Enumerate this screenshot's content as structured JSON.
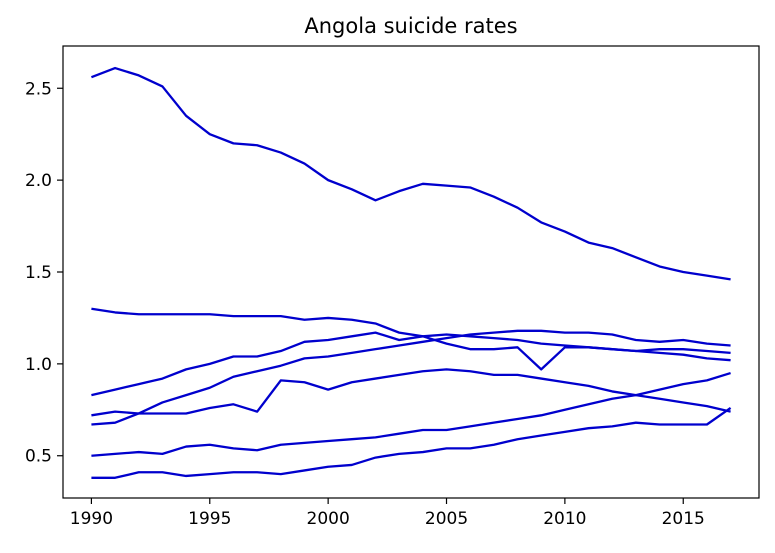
{
  "chart_data": {
    "type": "line",
    "title": "Angola suicide rates",
    "xlabel": "",
    "ylabel": "",
    "xlim": [
      1988.8,
      2018.2
    ],
    "ylim": [
      0.27,
      2.73
    ],
    "x_ticks": [
      "1990",
      "1995",
      "2000",
      "2005",
      "2010",
      "2015"
    ],
    "y_ticks": [
      "0.5",
      "1.0",
      "1.5",
      "2.0",
      "2.5"
    ],
    "grid": false,
    "legend": "none",
    "line_color": "#0000cd",
    "x": [
      1990,
      1991,
      1992,
      1993,
      1994,
      1995,
      1996,
      1997,
      1998,
      1999,
      2000,
      2001,
      2002,
      2003,
      2004,
      2005,
      2006,
      2007,
      2008,
      2009,
      2010,
      2011,
      2012,
      2013,
      2014,
      2015,
      2016,
      2017
    ],
    "series": [
      {
        "values": [
          2.56,
          2.61,
          2.57,
          2.51,
          2.35,
          2.25,
          2.2,
          2.19,
          2.15,
          2.09,
          2.0,
          1.95,
          1.89,
          1.94,
          1.98,
          1.97,
          1.96,
          1.91,
          1.85,
          1.77,
          1.72,
          1.66,
          1.63,
          1.58,
          1.53,
          1.5,
          1.48,
          1.46
        ]
      },
      {
        "values": [
          1.3,
          1.28,
          1.27,
          1.27,
          1.27,
          1.27,
          1.26,
          1.26,
          1.26,
          1.24,
          1.25,
          1.24,
          1.22,
          1.17,
          1.15,
          1.11,
          1.08,
          1.08,
          1.09,
          0.97,
          1.09,
          1.09,
          1.08,
          1.07,
          1.06,
          1.05,
          1.03,
          1.02
        ]
      },
      {
        "values": [
          0.83,
          0.86,
          0.89,
          0.92,
          0.97,
          1.0,
          1.04,
          1.04,
          1.07,
          1.12,
          1.13,
          1.15,
          1.17,
          1.13,
          1.15,
          1.16,
          1.15,
          1.14,
          1.13,
          1.11,
          1.1,
          1.09,
          1.08,
          1.07,
          1.08,
          1.08,
          1.07,
          1.06
        ]
      },
      {
        "values": [
          0.72,
          0.74,
          0.73,
          0.73,
          0.73,
          0.76,
          0.78,
          0.74,
          0.91,
          0.9,
          0.86,
          0.9,
          0.92,
          0.94,
          0.96,
          0.97,
          0.96,
          0.94,
          0.94,
          0.92,
          0.9,
          0.88,
          0.85,
          0.83,
          0.81,
          0.79,
          0.77,
          0.74
        ]
      },
      {
        "values": [
          0.67,
          0.68,
          0.73,
          0.79,
          0.83,
          0.87,
          0.93,
          0.96,
          0.99,
          1.03,
          1.04,
          1.06,
          1.08,
          1.1,
          1.12,
          1.14,
          1.16,
          1.17,
          1.18,
          1.18,
          1.17,
          1.17,
          1.16,
          1.13,
          1.12,
          1.13,
          1.11,
          1.1
        ]
      },
      {
        "values": [
          0.5,
          0.51,
          0.52,
          0.51,
          0.55,
          0.56,
          0.54,
          0.53,
          0.56,
          0.57,
          0.58,
          0.59,
          0.6,
          0.62,
          0.64,
          0.64,
          0.66,
          0.68,
          0.7,
          0.72,
          0.75,
          0.78,
          0.81,
          0.83,
          0.86,
          0.89,
          0.91,
          0.95
        ]
      },
      {
        "values": [
          0.38,
          0.38,
          0.41,
          0.41,
          0.39,
          0.4,
          0.41,
          0.41,
          0.4,
          0.42,
          0.44,
          0.45,
          0.49,
          0.51,
          0.52,
          0.54,
          0.54,
          0.56,
          0.59,
          0.61,
          0.63,
          0.65,
          0.66,
          0.68,
          0.67,
          0.67,
          0.67,
          0.76
        ]
      }
    ]
  }
}
